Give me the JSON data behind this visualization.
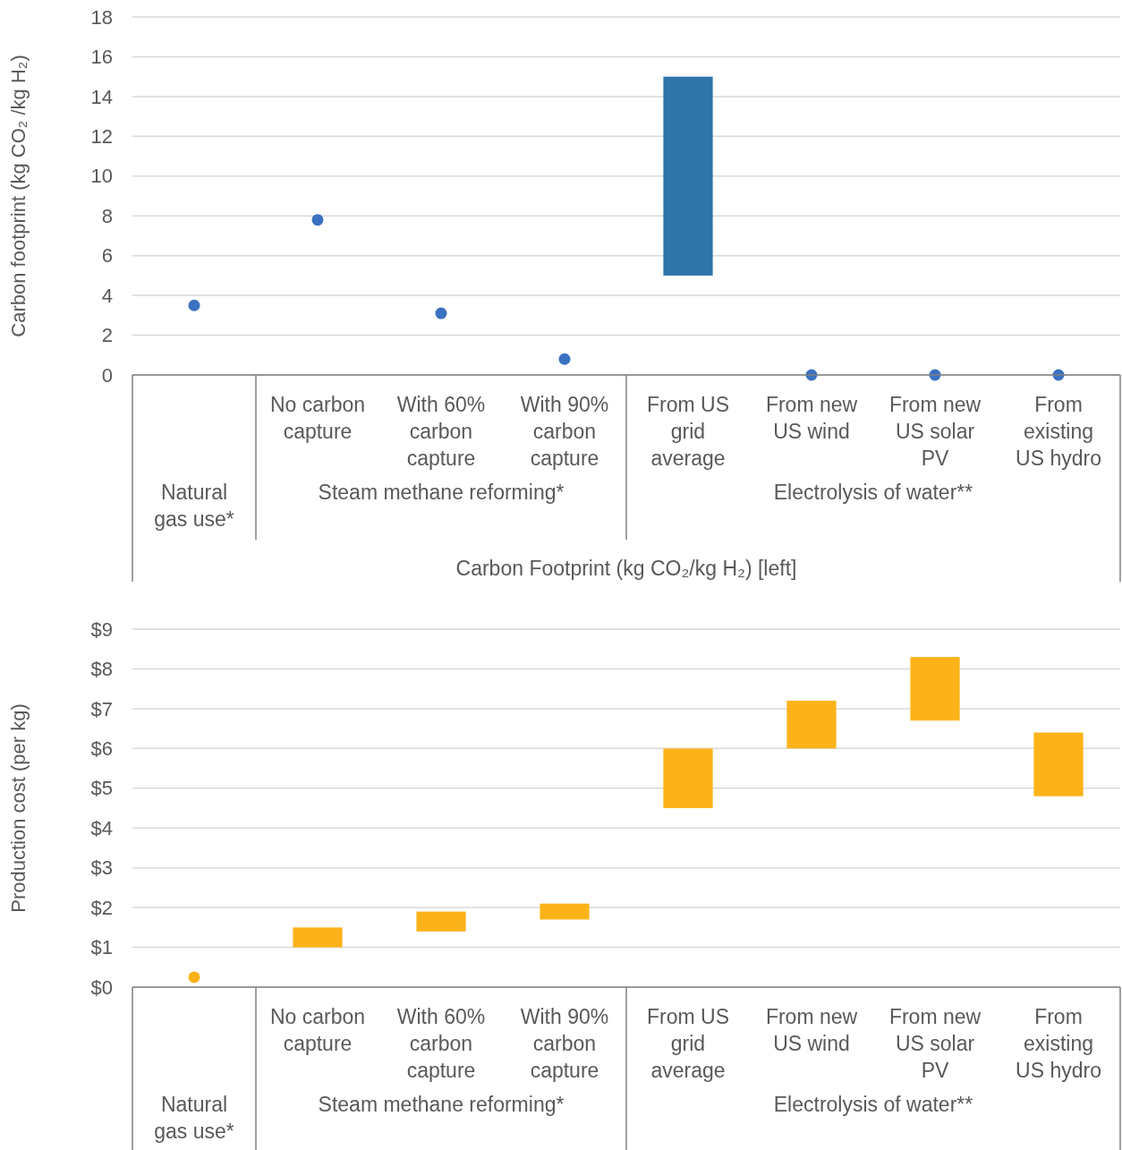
{
  "chart_data": [
    {
      "type": "bar",
      "ylabel": "Carbon footprint (kg CO₂ /kg H₂)",
      "xlabel": "Carbon Footprint (kg CO₂/kg H₂) [left]",
      "categories": [
        null,
        "No carbon capture",
        "With 60% carbon capture",
        "With 90% carbon capture",
        "From US grid average",
        "From new US wind",
        "From new US solar PV",
        "From existing US hydro"
      ],
      "series": [
        {
          "type": "scatter",
          "color": "#3a71c1",
          "values": [
            3.5,
            7.8,
            3.1,
            0.8,
            null,
            0,
            0,
            0
          ]
        },
        {
          "type": "bar",
          "color": "#2e75a8",
          "base": [
            null,
            null,
            null,
            null,
            5,
            null,
            null,
            null
          ],
          "values": [
            null,
            null,
            null,
            null,
            10,
            null,
            null,
            null
          ]
        }
      ],
      "annotations": [
        "Natural gas use*",
        "Steam methane reforming*",
        "Electrolysis of water**"
      ],
      "ylim": [
        0,
        18
      ],
      "yticks": [
        0,
        2,
        4,
        6,
        8,
        10,
        12,
        14,
        16,
        18
      ],
      "grid": "y",
      "marker": "circle"
    },
    {
      "type": "bar",
      "ylabel": "Production cost (per kg)",
      "categories": [
        null,
        "No carbon capture",
        "With 60% carbon capture",
        "With 90% carbon capture",
        "From US grid average",
        "From new US wind",
        "From new US solar PV",
        "From existing US hydro"
      ],
      "series": [
        {
          "type": "scatter",
          "color": "#fbb117",
          "values": [
            0.25,
            null,
            null,
            null,
            null,
            null,
            null,
            null
          ]
        },
        {
          "type": "bar",
          "color": "#fcb31a",
          "base": [
            null,
            1.0,
            1.4,
            1.7,
            4.5,
            6.0,
            6.7,
            4.8
          ],
          "values": [
            null,
            0.5,
            0.5,
            0.4,
            1.5,
            1.2,
            1.6,
            1.6
          ]
        }
      ],
      "annotations": [
        "Natural gas use*",
        "Steam methane reforming*",
        "Electrolysis of water**"
      ],
      "ylim": [
        0,
        9
      ],
      "yticks": [
        {
          "value": 0,
          "label": "$0"
        },
        {
          "value": 1,
          "label": "$1"
        },
        {
          "value": 2,
          "label": "$2"
        },
        {
          "value": 3,
          "label": "$3"
        },
        {
          "value": 4,
          "label": "$4"
        },
        {
          "value": 5,
          "label": "$5"
        },
        {
          "value": 6,
          "label": "$6"
        },
        {
          "value": 7,
          "label": "$7"
        },
        {
          "value": 8,
          "label": "$8"
        },
        {
          "value": 9,
          "label": "$9"
        }
      ],
      "grid": "y",
      "marker": "circle"
    }
  ]
}
